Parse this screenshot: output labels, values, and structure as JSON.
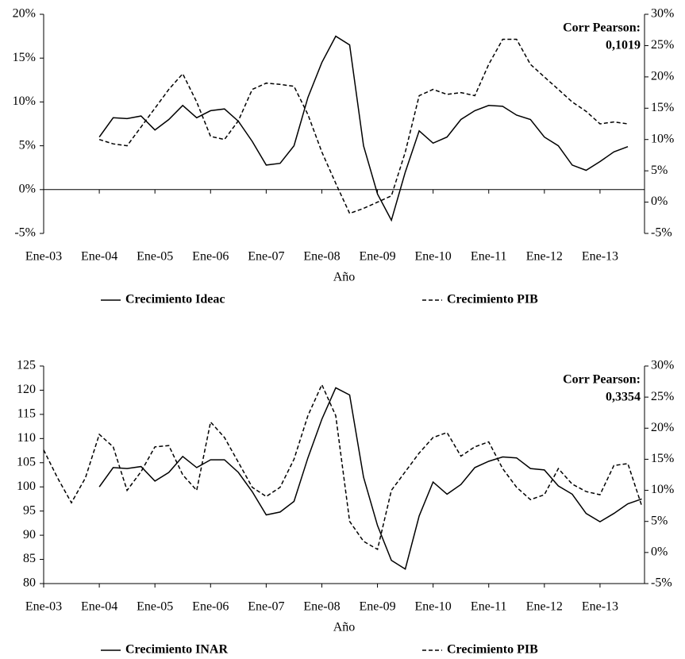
{
  "chart_data": [
    {
      "type": "line",
      "x_label": "Año",
      "annotation": [
        "Corr Pearson:",
        "0,1019"
      ],
      "xlim": [
        2003,
        2013.8
      ],
      "xticks": [
        {
          "value": 2003,
          "label": "Ene-03"
        },
        {
          "value": 2004,
          "label": "Ene-04"
        },
        {
          "value": 2005,
          "label": "Ene-05"
        },
        {
          "value": 2006,
          "label": "Ene-06"
        },
        {
          "value": 2007,
          "label": "Ene-07"
        },
        {
          "value": 2008,
          "label": "Ene-08"
        },
        {
          "value": 2009,
          "label": "Ene-09"
        },
        {
          "value": 2010,
          "label": "Ene-10"
        },
        {
          "value": 2011,
          "label": "Ene-11"
        },
        {
          "value": 2012,
          "label": "Ene-12"
        },
        {
          "value": 2013,
          "label": "Ene-13"
        }
      ],
      "ylim": [
        -5,
        20
      ],
      "yticks": [
        {
          "value": -5,
          "label": "-5%"
        },
        {
          "value": 0,
          "label": "0%"
        },
        {
          "value": 5,
          "label": "5%"
        },
        {
          "value": 10,
          "label": "10%"
        },
        {
          "value": 15,
          "label": "15%"
        },
        {
          "value": 20,
          "label": "20%"
        }
      ],
      "y2lim": [
        -5,
        30
      ],
      "y2ticks": [
        {
          "value": -5,
          "label": "-5%"
        },
        {
          "value": 0,
          "label": "0%"
        },
        {
          "value": 5,
          "label": "5%"
        },
        {
          "value": 10,
          "label": "10%"
        },
        {
          "value": 15,
          "label": "15%"
        },
        {
          "value": 20,
          "label": "20%"
        },
        {
          "value": 25,
          "label": "25%"
        },
        {
          "value": 30,
          "label": "30%"
        }
      ],
      "series": [
        {
          "name": "Crecimiento Ideac",
          "color": "#000000",
          "line_style": "solid",
          "axis": "y",
          "x": [
            2004,
            2004.25,
            2004.5,
            2004.75,
            2005,
            2005.25,
            2005.5,
            2005.75,
            2006,
            2006.25,
            2006.5,
            2006.75,
            2007,
            2007.25,
            2007.5,
            2007.75,
            2008,
            2008.25,
            2008.5,
            2008.75,
            2009,
            2009.25,
            2009.5,
            2009.75,
            2010,
            2010.25,
            2010.5,
            2010.75,
            2011,
            2011.25,
            2011.5,
            2011.75,
            2012,
            2012.25,
            2012.5,
            2012.75,
            2013,
            2013.25,
            2013.5
          ],
          "values": [
            6,
            8.2,
            8.1,
            8.4,
            6.8,
            8.0,
            9.6,
            8.2,
            9.0,
            9.2,
            7.8,
            5.5,
            2.8,
            3.0,
            5.0,
            10.5,
            14.5,
            17.5,
            16.5,
            5.0,
            -0.5,
            -3.5,
            2.0,
            6.7,
            5.3,
            6.0,
            8.0,
            9.0,
            9.6,
            9.5,
            8.5,
            8.0,
            6.0,
            5.0,
            2.8,
            2.2,
            3.2,
            4.3,
            4.9
          ]
        },
        {
          "name": "Crecimiento PIB",
          "color": "#000000",
          "line_style": "dashed",
          "axis": "y2",
          "x": [
            2004,
            2004.25,
            2004.5,
            2004.75,
            2005,
            2005.25,
            2005.5,
            2005.75,
            2006,
            2006.25,
            2006.5,
            2006.75,
            2007,
            2007.25,
            2007.5,
            2007.75,
            2008,
            2008.25,
            2008.5,
            2008.75,
            2009,
            2009.25,
            2009.5,
            2009.75,
            2010,
            2010.25,
            2010.5,
            2010.75,
            2011,
            2011.25,
            2011.5,
            2011.75,
            2012,
            2012.25,
            2012.5,
            2012.75,
            2013,
            2013.25,
            2013.5
          ],
          "values": [
            10,
            9.3,
            9,
            12,
            15,
            18,
            20.5,
            16,
            10.5,
            10,
            13,
            18,
            19,
            18.8,
            18.5,
            14,
            8,
            3,
            -1.8,
            -1,
            0,
            1,
            8,
            17,
            18,
            17.2,
            17.5,
            17,
            22,
            26,
            26,
            22,
            20,
            18,
            16,
            14.5,
            12.5,
            12.8,
            12.5
          ]
        }
      ]
    },
    {
      "type": "line",
      "x_label": "Año",
      "annotation": [
        "Corr Pearson:",
        "0,3354"
      ],
      "xlim": [
        2003,
        2013.8
      ],
      "xticks": [
        {
          "value": 2003,
          "label": "Ene-03"
        },
        {
          "value": 2004,
          "label": "Ene-04"
        },
        {
          "value": 2005,
          "label": "Ene-05"
        },
        {
          "value": 2006,
          "label": "Ene-06"
        },
        {
          "value": 2007,
          "label": "Ene-07"
        },
        {
          "value": 2008,
          "label": "Ene-08"
        },
        {
          "value": 2009,
          "label": "Ene-09"
        },
        {
          "value": 2010,
          "label": "Ene-10"
        },
        {
          "value": 2011,
          "label": "Ene-11"
        },
        {
          "value": 2012,
          "label": "Ene-12"
        },
        {
          "value": 2013,
          "label": "Ene-13"
        }
      ],
      "ylim": [
        80,
        125
      ],
      "yticks": [
        80,
        85,
        90,
        95,
        100,
        105,
        110,
        115,
        120,
        125
      ],
      "y2lim": [
        -5,
        30
      ],
      "y2ticks": [
        {
          "value": -5,
          "label": "-5%"
        },
        {
          "value": 0,
          "label": "0%"
        },
        {
          "value": 5,
          "label": "5%"
        },
        {
          "value": 10,
          "label": "10%"
        },
        {
          "value": 15,
          "label": "15%"
        },
        {
          "value": 20,
          "label": "20%"
        },
        {
          "value": 25,
          "label": "25%"
        },
        {
          "value": 30,
          "label": "30%"
        }
      ],
      "series": [
        {
          "name": "Crecimiento INAR",
          "color": "#000000",
          "line_style": "solid",
          "axis": "y",
          "x": [
            2004,
            2004.25,
            2004.5,
            2004.75,
            2005,
            2005.25,
            2005.5,
            2005.75,
            2006,
            2006.25,
            2006.5,
            2006.75,
            2007,
            2007.25,
            2007.5,
            2007.75,
            2008,
            2008.25,
            2008.5,
            2008.75,
            2009,
            2009.25,
            2009.5,
            2009.75,
            2010,
            2010.25,
            2010.5,
            2010.75,
            2011,
            2011.25,
            2011.5,
            2011.75,
            2012,
            2012.25,
            2012.5,
            2012.75,
            2013,
            2013.25,
            2013.5,
            2013.75
          ],
          "values": [
            100,
            104,
            103.8,
            104.2,
            101.2,
            103,
            106.3,
            104,
            105.6,
            105.6,
            103,
            99,
            94.2,
            94.8,
            97,
            106,
            114,
            120.5,
            119,
            102,
            92,
            84.8,
            83,
            94,
            101,
            98.5,
            100.5,
            104,
            105.3,
            106.2,
            106,
            103.8,
            103.5,
            100.2,
            98.5,
            94.5,
            92.8,
            94.5,
            96.5,
            97.5
          ]
        },
        {
          "name": "Crecimiento PIB",
          "color": "#000000",
          "line_style": "dashed",
          "axis": "y2",
          "x": [
            2003,
            2003.25,
            2003.5,
            2003.75,
            2004,
            2004.25,
            2004.5,
            2004.75,
            2005,
            2005.25,
            2005.5,
            2005.75,
            2006,
            2006.25,
            2006.5,
            2006.75,
            2007,
            2007.25,
            2007.5,
            2007.75,
            2008,
            2008.25,
            2008.5,
            2008.75,
            2009,
            2009.25,
            2009.5,
            2009.75,
            2010,
            2010.25,
            2010.5,
            2010.75,
            2011,
            2011.25,
            2011.5,
            2011.75,
            2012,
            2012.25,
            2012.5,
            2012.75,
            2013,
            2013.25,
            2013.5,
            2013.75
          ],
          "values": [
            16.5,
            12,
            8,
            12,
            19,
            17,
            10,
            13,
            17,
            17.2,
            12.5,
            10,
            21,
            18.5,
            14.5,
            10.5,
            9,
            10.5,
            15,
            22,
            27,
            22,
            5,
            1.8,
            0.5,
            10,
            13,
            16,
            18.5,
            19.3,
            15.5,
            17,
            17.8,
            13.5,
            10.5,
            8.5,
            9.3,
            13.5,
            11,
            9.8,
            9.3,
            14,
            14.3,
            7.5
          ]
        }
      ]
    }
  ]
}
